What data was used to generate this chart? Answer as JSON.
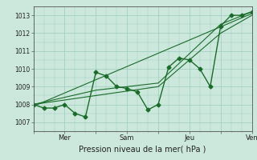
{
  "xlabel": "Pression niveau de la mer( hPa )",
  "bg_color": "#cce8dc",
  "grid_color": "#99ccbb",
  "line_color": "#1a6b2a",
  "ylim": [
    1006.5,
    1013.5
  ],
  "xlim": [
    0,
    21
  ],
  "yticks": [
    1007,
    1008,
    1009,
    1010,
    1011,
    1012,
    1013
  ],
  "xtick_positions": [
    0,
    3,
    6,
    9,
    12,
    15,
    18,
    21
  ],
  "xtick_labels": [
    "",
    "Mer",
    "",
    "Sam",
    "",
    "Jeu",
    "",
    "Ven"
  ],
  "series": [
    {
      "x": [
        0.0,
        1.0,
        2.0,
        3.0,
        4.0,
        5.0,
        6.0,
        7.0,
        8.0,
        9.0,
        10.0,
        11.0,
        12.0,
        13.0,
        14.0,
        15.0,
        16.0,
        17.0,
        18.0,
        19.0,
        20.0,
        21.0
      ],
      "y": [
        1008.0,
        1007.8,
        1007.8,
        1008.0,
        1007.5,
        1007.3,
        1009.8,
        1009.6,
        1009.0,
        1008.9,
        1008.7,
        1007.7,
        1008.0,
        1010.1,
        1010.6,
        1010.5,
        1010.0,
        1009.0,
        1012.4,
        1013.0,
        1013.0,
        1013.2
      ],
      "marker": true,
      "lw": 1.0
    },
    {
      "x": [
        0.0,
        6.0,
        12.0,
        18.0,
        21.0
      ],
      "y": [
        1008.0,
        1008.8,
        1009.2,
        1012.5,
        1013.2
      ],
      "marker": false,
      "lw": 0.8
    },
    {
      "x": [
        0.0,
        6.0,
        12.0,
        18.0,
        21.0
      ],
      "y": [
        1008.0,
        1008.5,
        1009.0,
        1012.0,
        1013.0
      ],
      "marker": false,
      "lw": 0.8
    },
    {
      "x": [
        0.0,
        21.0
      ],
      "y": [
        1007.9,
        1013.1
      ],
      "marker": false,
      "lw": 0.8
    }
  ]
}
